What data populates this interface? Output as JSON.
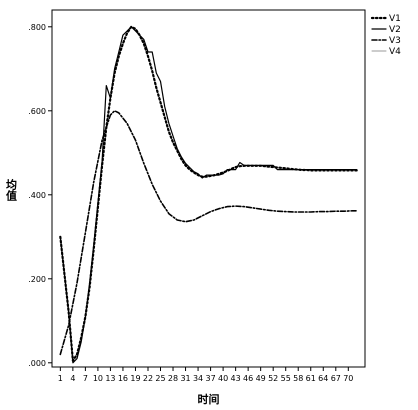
{
  "chart_data": {
    "type": "line",
    "xlabel": "时间",
    "ylabel": "均值",
    "ylim": [
      -0.01,
      0.84
    ],
    "xlim": [
      -1,
      74
    ],
    "grid": false,
    "legend_position": "top-right",
    "x_ticks": [
      1,
      4,
      7,
      10,
      13,
      16,
      19,
      22,
      25,
      28,
      31,
      34,
      37,
      40,
      43,
      46,
      49,
      52,
      55,
      58,
      61,
      64,
      67,
      70
    ],
    "y_ticks": [
      0.0,
      0.2,
      0.4,
      0.6,
      0.8
    ],
    "y_tick_labels": [
      ".000",
      ".200",
      ".400",
      ".600",
      ".800"
    ],
    "series": [
      {
        "name": "V1",
        "style": "dotted",
        "x": [
          1,
          3,
          4,
          5,
          6,
          7,
          8,
          9,
          10,
          11,
          12,
          13,
          14,
          15,
          16,
          17,
          18,
          19,
          20,
          21,
          22,
          23,
          24,
          25,
          26,
          27,
          28,
          29,
          30,
          31,
          32,
          33,
          34,
          35,
          36,
          37,
          38,
          39,
          40,
          41,
          42,
          43,
          44,
          45,
          46,
          47,
          48,
          49,
          50,
          51,
          52,
          53,
          54,
          55,
          56,
          57,
          58,
          59,
          60,
          61,
          62,
          63,
          64,
          65,
          66,
          67,
          68,
          69,
          70,
          71,
          72
        ],
        "y": [
          0.3,
          0.12,
          0.005,
          0.02,
          0.06,
          0.11,
          0.18,
          0.27,
          0.37,
          0.47,
          0.56,
          0.63,
          0.69,
          0.73,
          0.76,
          0.785,
          0.8,
          0.795,
          0.78,
          0.76,
          0.73,
          0.695,
          0.655,
          0.62,
          0.585,
          0.55,
          0.525,
          0.505,
          0.485,
          0.47,
          0.46,
          0.453,
          0.447,
          0.443,
          0.443,
          0.445,
          0.447,
          0.45,
          0.453,
          0.457,
          0.462,
          0.466,
          0.468,
          0.469,
          0.469,
          0.469,
          0.469,
          0.469,
          0.468,
          0.467,
          0.466,
          0.465,
          0.464,
          0.463,
          0.462,
          0.461,
          0.46,
          0.459,
          0.459,
          0.458,
          0.458,
          0.458,
          0.458,
          0.458,
          0.458,
          0.458,
          0.458,
          0.458,
          0.458,
          0.458,
          0.458
        ]
      },
      {
        "name": "V2",
        "style": "solid",
        "x": [
          1,
          3,
          4,
          5,
          6,
          7,
          8,
          9,
          10,
          11,
          12,
          13,
          14,
          15,
          16,
          17,
          18,
          19,
          20,
          21,
          22,
          23,
          24,
          25,
          26,
          27,
          28,
          29,
          30,
          31,
          32,
          33,
          34,
          35,
          36,
          37,
          38,
          39,
          40,
          41,
          42,
          43,
          44,
          45,
          46,
          47,
          48,
          49,
          50,
          51,
          52,
          53,
          54,
          55,
          56,
          57,
          58,
          59,
          60,
          61,
          62,
          63,
          64,
          65,
          66,
          67,
          68,
          69,
          70,
          71,
          72
        ],
        "y": [
          0.3,
          0.12,
          0.0,
          0.01,
          0.05,
          0.11,
          0.19,
          0.28,
          0.38,
          0.48,
          0.66,
          0.63,
          0.7,
          0.74,
          0.78,
          0.79,
          0.8,
          0.79,
          0.78,
          0.77,
          0.74,
          0.74,
          0.69,
          0.67,
          0.61,
          0.57,
          0.54,
          0.51,
          0.49,
          0.475,
          0.465,
          0.455,
          0.45,
          0.44,
          0.447,
          0.447,
          0.447,
          0.447,
          0.45,
          0.46,
          0.46,
          0.46,
          0.477,
          0.47,
          0.47,
          0.47,
          0.47,
          0.47,
          0.47,
          0.47,
          0.47,
          0.46,
          0.46,
          0.46,
          0.46,
          0.46,
          0.46,
          0.46,
          0.46,
          0.46,
          0.46,
          0.46,
          0.46,
          0.46,
          0.46,
          0.46,
          0.46,
          0.46,
          0.46,
          0.46,
          0.46
        ]
      },
      {
        "name": "V3",
        "style": "dash-dot",
        "x": [
          1,
          3,
          5,
          7,
          9,
          11,
          13,
          14,
          15,
          17,
          19,
          21,
          23,
          25,
          27,
          29,
          31,
          33,
          35,
          37,
          39,
          41,
          43,
          45,
          47,
          49,
          51,
          53,
          55,
          57,
          59,
          61,
          63,
          65,
          67,
          69,
          71,
          72
        ],
        "y": [
          0.02,
          0.09,
          0.19,
          0.31,
          0.43,
          0.53,
          0.59,
          0.6,
          0.595,
          0.57,
          0.53,
          0.475,
          0.425,
          0.385,
          0.355,
          0.34,
          0.336,
          0.34,
          0.35,
          0.36,
          0.367,
          0.372,
          0.373,
          0.372,
          0.369,
          0.366,
          0.363,
          0.361,
          0.36,
          0.359,
          0.359,
          0.359,
          0.36,
          0.36,
          0.361,
          0.361,
          0.362,
          0.362
        ]
      },
      {
        "name": "V4",
        "style": "solid-light",
        "x": [],
        "y": []
      }
    ]
  }
}
